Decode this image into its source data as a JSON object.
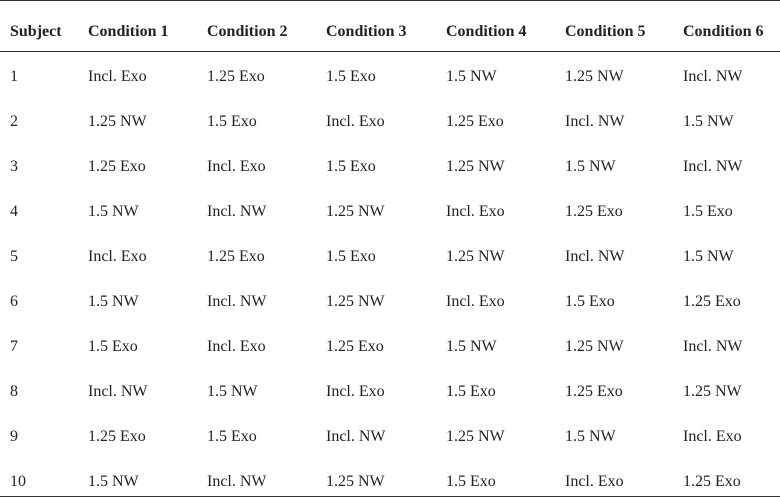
{
  "table": {
    "header": [
      "Subject",
      "Condition 1",
      "Condition 2",
      "Condition 3",
      "Condition 4",
      "Condition 5",
      "Condition 6"
    ],
    "rows": [
      [
        "1",
        "Incl. Exo",
        "1.25 Exo",
        "1.5 Exo",
        "1.5 NW",
        "1.25 NW",
        "Incl. NW"
      ],
      [
        "2",
        "1.25 NW",
        "1.5 Exo",
        "Incl. Exo",
        "1.25 Exo",
        "Incl. NW",
        "1.5 NW"
      ],
      [
        "3",
        "1.25 Exo",
        "Incl. Exo",
        "1.5 Exo",
        "1.25 NW",
        "1.5 NW",
        "Incl. NW"
      ],
      [
        "4",
        "1.5 NW",
        "Incl. NW",
        "1.25 NW",
        "Incl. Exo",
        "1.25 Exo",
        "1.5 Exo"
      ],
      [
        "5",
        "Incl. Exo",
        "1.25 Exo",
        "1.5 Exo",
        "1.25 NW",
        "Incl. NW",
        "1.5 NW"
      ],
      [
        "6",
        "1.5 NW",
        "Incl. NW",
        "1.25 NW",
        "Incl. Exo",
        "1.5 Exo",
        "1.25 Exo"
      ],
      [
        "7",
        "1.5 Exo",
        "Incl. Exo",
        "1.25 Exo",
        "1.5 NW",
        "1.25 NW",
        "Incl. NW"
      ],
      [
        "8",
        "Incl. NW",
        "1.5 NW",
        "Incl. Exo",
        "1.5 Exo",
        "1.25 Exo",
        "1.25 NW"
      ],
      [
        "9",
        "1.25 Exo",
        "1.5 Exo",
        "Incl. NW",
        "1.25 NW",
        "1.5 NW",
        "Incl. Exo"
      ],
      [
        "10",
        "1.5 NW",
        "Incl. NW",
        "1.25 NW",
        "1.5 Exo",
        "Incl. Exo",
        "1.25 Exo"
      ]
    ]
  }
}
